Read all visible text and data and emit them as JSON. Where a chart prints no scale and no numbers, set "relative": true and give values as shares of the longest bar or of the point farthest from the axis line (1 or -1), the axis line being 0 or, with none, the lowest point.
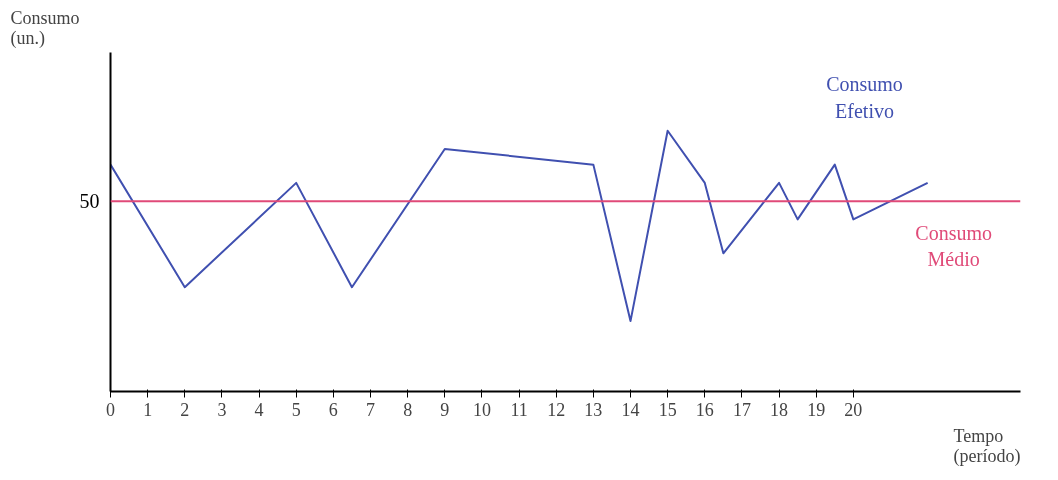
{
  "chart_data": {
    "type": "line",
    "relative": true,
    "xlabel": "Tempo (período)",
    "ylabel": "Consumo (un.)",
    "x": [
      0,
      2,
      5,
      6.5,
      9,
      13,
      14,
      15,
      16,
      16.5,
      18,
      18.5,
      19.5,
      20,
      22
    ],
    "xlim": [
      0,
      24.5
    ],
    "xticks": [
      0,
      1,
      2,
      3,
      4,
      5,
      6,
      7,
      8,
      9,
      10,
      11,
      12,
      13,
      14,
      15,
      16,
      17,
      18,
      19,
      20
    ],
    "series": [
      {
        "name": "Consumo Efetivo",
        "color": "#4050b0",
        "values": [
          0.87,
          0.4,
          0.8,
          0.4,
          0.93,
          0.87,
          0.27,
          1,
          0.8,
          0.53,
          0.8,
          0.66,
          0.87,
          0.66,
          0.8
        ]
      }
    ],
    "ref_lines": [
      {
        "axis": "y",
        "value": 0.73,
        "label": "Consumo Médio",
        "color": "#e04a78"
      }
    ],
    "annotations": [
      "50"
    ],
    "grid": false,
    "legend": false,
    "marker": "none",
    "line_style": "solid"
  }
}
